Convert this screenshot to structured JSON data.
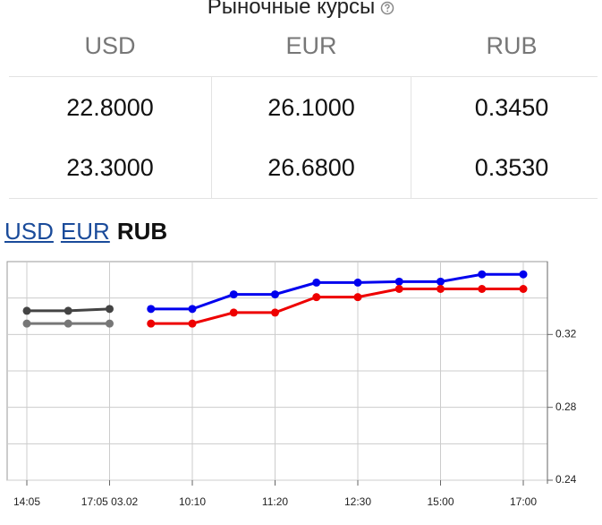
{
  "header": {
    "title": "Рыночные курсы"
  },
  "table": {
    "columns": [
      "USD",
      "EUR",
      "RUB"
    ],
    "rows": [
      [
        "22.8000",
        "26.1000",
        "0.3450"
      ],
      [
        "23.3000",
        "26.6800",
        "0.3530"
      ]
    ]
  },
  "tabs": [
    "USD",
    "EUR",
    "RUB"
  ],
  "active_tab": 2,
  "chart_data": {
    "type": "line",
    "categories": [
      "14:05",
      null,
      "17:05 03.02",
      null,
      "10:10",
      null,
      "11:20",
      null,
      "12:30",
      null,
      "15:00",
      null,
      "17:00"
    ],
    "series": [
      {
        "color": "#444444",
        "values": [
          0.333,
          0.333,
          0.334,
          null,
          null,
          null,
          null,
          null,
          null,
          null,
          null,
          null,
          null
        ]
      },
      {
        "color": "#777777",
        "values": [
          0.326,
          0.326,
          0.326,
          null,
          null,
          null,
          null,
          null,
          null,
          null,
          null,
          null,
          null
        ]
      },
      {
        "color": "#0000ee",
        "values": [
          null,
          null,
          null,
          0.334,
          0.334,
          0.342,
          0.342,
          0.3485,
          0.3485,
          0.349,
          0.349,
          0.353,
          0.353
        ]
      },
      {
        "color": "#ee0000",
        "values": [
          null,
          null,
          null,
          0.326,
          0.326,
          0.332,
          0.332,
          0.3405,
          0.3405,
          0.345,
          0.345,
          0.345,
          0.345
        ]
      }
    ],
    "ylim": [
      0.24,
      0.36
    ],
    "yticks": [
      0.24,
      0.28,
      0.32
    ],
    "minor_yticks": [
      0.26,
      0.3,
      0.34
    ],
    "grid": true,
    "y_axis_side": "right"
  }
}
